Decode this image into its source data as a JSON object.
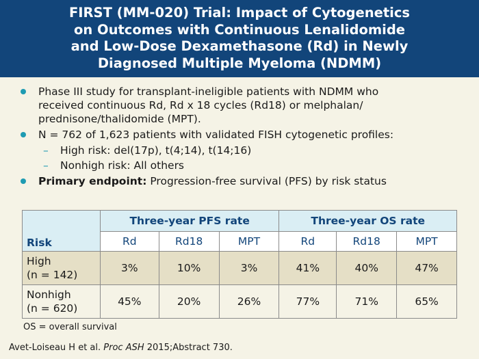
{
  "title_lines": [
    "FIRST (MM-020) Trial: Impact of Cytogenetics",
    "on Outcomes with Continuous Lenalidomide",
    "and Low-Dose Dexamethasone (Rd) in Newly",
    "Diagnosed Multiple Myeloma (NDMM)"
  ],
  "bullets": {
    "b1_lines": [
      "Phase III study for transplant-ineligible patients with NDMM who",
      "received continuous Rd, Rd x 18 cycles (Rd18) or melphalan/",
      "prednisone/thalidomide (MPT)."
    ],
    "b2": "N = 762 of 1,623 patients with validated FISH cytogenetic profiles:",
    "b2_sub": [
      "High risk: del(17p), t(4;14), t(14;16)",
      "Nonhigh risk: All others"
    ],
    "b3_bold": "Primary endpoint:",
    "b3_text": " Progression-free survival (PFS) by risk status"
  },
  "table": {
    "risk_header": "Risk",
    "group_pfs": "Three-year PFS rate",
    "group_os": "Three-year OS rate",
    "sub_headers": [
      "Rd",
      "Rd18",
      "MPT",
      "Rd",
      "Rd18",
      "MPT"
    ],
    "rows": [
      {
        "label": [
          "High",
          "(n = 142)"
        ],
        "values": [
          "3%",
          "10%",
          "3%",
          "41%",
          "40%",
          "47%"
        ]
      },
      {
        "label": [
          "Nonhigh",
          "(n = 620)"
        ],
        "values": [
          "45%",
          "20%",
          "26%",
          "77%",
          "71%",
          "65%"
        ]
      }
    ]
  },
  "footnote": "OS = overall survival",
  "citation": {
    "authors": "Avet-Loiseau H et al. ",
    "journal": "Proc ASH",
    "rest": " 2015;Abstract 730."
  },
  "colors": {
    "header_bg": "#12457a",
    "bullet": "#1e9bb2",
    "table_header_bg": "#daeef4",
    "row_shade": "#e5dfc6",
    "background": "#f5f3e6"
  }
}
